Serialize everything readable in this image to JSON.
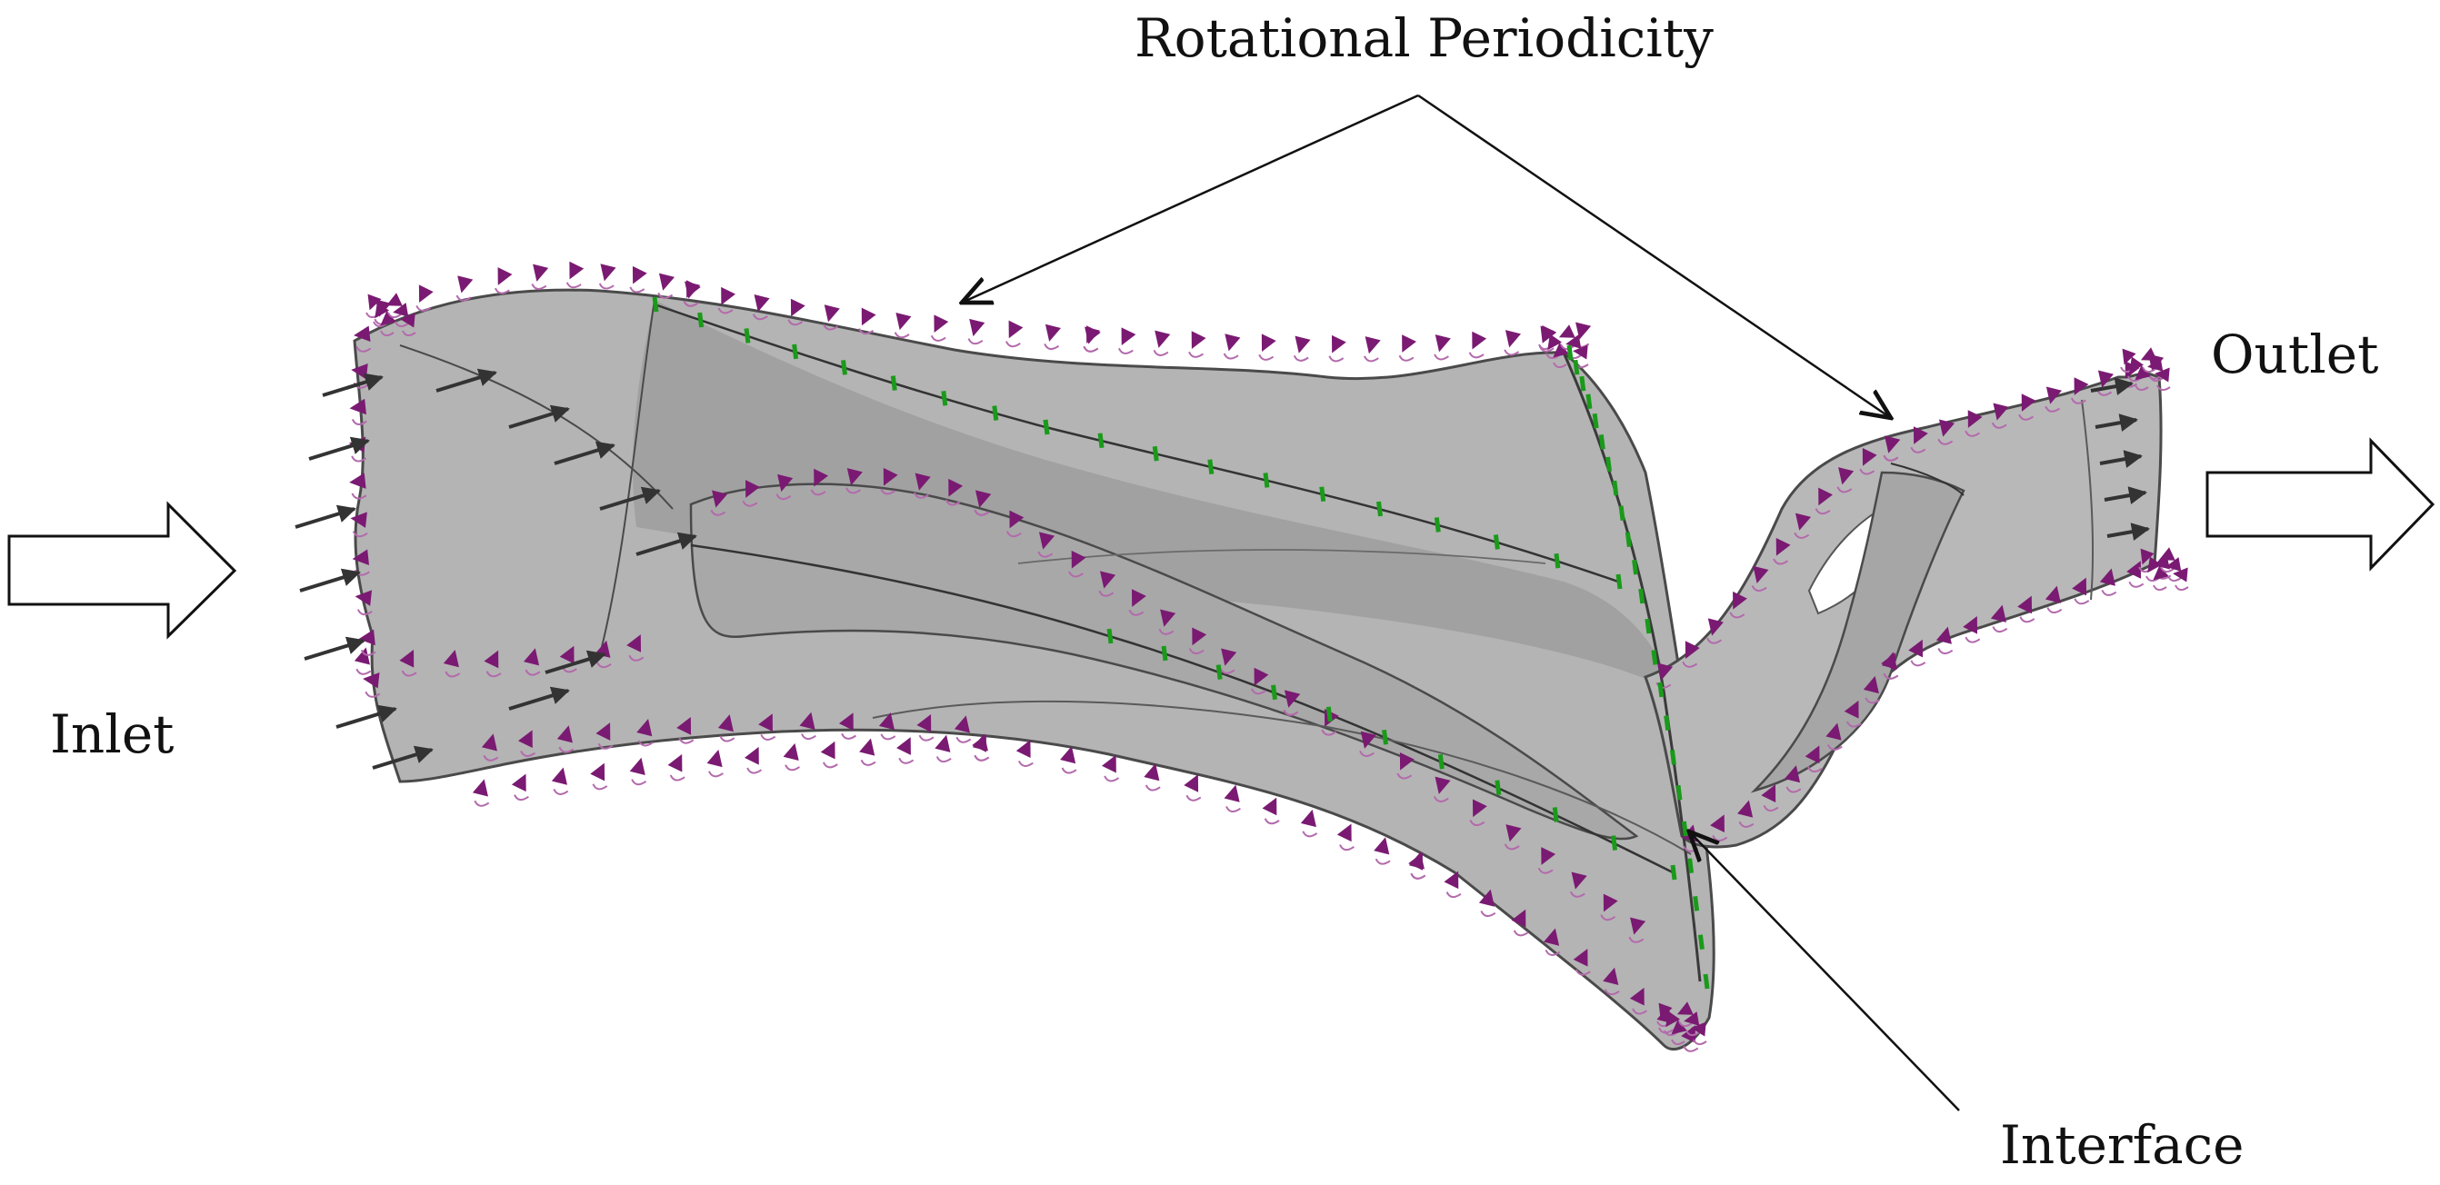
{
  "labels": {
    "rotational_periodicity": "Rotational Periodicity",
    "outlet": "Outlet",
    "inlet": "Inlet",
    "interface": "Interface"
  },
  "colors": {
    "domain_fill": "#b4b4b4",
    "domain_fill_dark": "#9c9c9c",
    "domain_edge": "#4a4a4a",
    "periodic_marker": "#7a1a72",
    "periodic_marker_light": "#b36aac",
    "interface_marker": "#1a9a1a",
    "flow_arrow": "#333333",
    "leader_line": "#111111"
  },
  "icons": {
    "inlet_arrow": "hollow-right-arrow",
    "outlet_arrow": "hollow-right-arrow"
  }
}
